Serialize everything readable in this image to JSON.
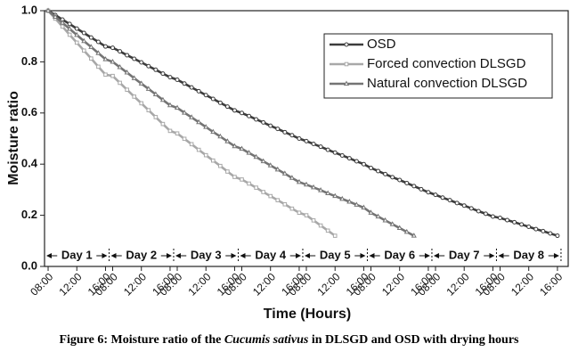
{
  "chart_data": {
    "type": "line",
    "xlabel": "Time (Hours)",
    "ylabel": "Moisture ratio",
    "caption": [
      "Figure 6: Moisture ratio of the ",
      "Cucumis sativus",
      " in DLSGD and OSD with drying hours"
    ],
    "day_labels": [
      "Day 1",
      "Day 2",
      "Day 3",
      "Day 4",
      "Day 5",
      "Day 6",
      "Day 7",
      "Day 8"
    ],
    "legend": "upper right",
    "x": [
      0,
      1,
      2,
      3,
      4,
      5,
      6,
      7,
      8,
      9,
      10,
      11,
      12,
      13,
      14,
      15,
      16,
      17,
      18,
      19,
      20,
      21,
      22,
      23,
      24,
      25,
      26,
      27,
      28,
      29,
      30,
      31,
      32,
      33,
      34,
      35,
      36,
      37,
      38,
      39,
      40,
      41,
      42,
      43,
      44,
      45,
      46,
      47,
      48,
      49,
      50,
      51,
      52,
      53,
      54,
      55,
      56,
      57,
      58,
      59,
      60,
      61,
      62,
      63,
      64,
      65,
      66,
      67,
      68,
      69,
      70,
      71
    ],
    "series": [
      {
        "name": "OSD",
        "color": "#3c3c3c",
        "marker": "circle",
        "values": [
          1.0,
          0.983,
          0.965,
          0.948,
          0.93,
          0.913,
          0.895,
          0.878,
          0.86,
          0.855,
          0.841,
          0.826,
          0.812,
          0.798,
          0.783,
          0.769,
          0.754,
          0.74,
          0.73,
          0.715,
          0.7,
          0.685,
          0.67,
          0.655,
          0.64,
          0.625,
          0.61,
          0.6,
          0.588,
          0.575,
          0.563,
          0.55,
          0.538,
          0.525,
          0.513,
          0.5,
          0.49,
          0.479,
          0.468,
          0.456,
          0.445,
          0.434,
          0.423,
          0.411,
          0.4,
          0.385,
          0.373,
          0.361,
          0.349,
          0.338,
          0.326,
          0.314,
          0.302,
          0.29,
          0.28,
          0.269,
          0.259,
          0.248,
          0.238,
          0.227,
          0.216,
          0.206,
          0.195,
          0.19,
          0.181,
          0.173,
          0.164,
          0.155,
          0.146,
          0.138,
          0.129,
          0.12
        ]
      },
      {
        "name": "Forced convection DLSGD",
        "color": "#a8a8a8",
        "marker": "square",
        "values": [
          1.0,
          0.969,
          0.938,
          0.906,
          0.875,
          0.844,
          0.813,
          0.781,
          0.75,
          0.745,
          0.718,
          0.691,
          0.664,
          0.638,
          0.611,
          0.584,
          0.557,
          0.53,
          0.52,
          0.499,
          0.478,
          0.456,
          0.435,
          0.414,
          0.393,
          0.371,
          0.35,
          0.34,
          0.324,
          0.308,
          0.291,
          0.275,
          0.259,
          0.243,
          0.226,
          0.21,
          0.2,
          0.18,
          0.16,
          0.14,
          0.12,
          null,
          null,
          null,
          null,
          null,
          null,
          null,
          null,
          null,
          null,
          null,
          null,
          null,
          null,
          null,
          null,
          null,
          null,
          null,
          null,
          null,
          null,
          null,
          null,
          null,
          null,
          null,
          null,
          null,
          null,
          null
        ]
      },
      {
        "name": "Natural convection DLSGD",
        "color": "#747474",
        "marker": "triangle",
        "values": [
          1.0,
          0.976,
          0.953,
          0.929,
          0.905,
          0.881,
          0.858,
          0.834,
          0.81,
          0.8,
          0.779,
          0.758,
          0.736,
          0.715,
          0.694,
          0.673,
          0.651,
          0.63,
          0.62,
          0.601,
          0.583,
          0.564,
          0.545,
          0.526,
          0.508,
          0.489,
          0.47,
          0.46,
          0.444,
          0.428,
          0.411,
          0.395,
          0.379,
          0.363,
          0.346,
          0.33,
          0.32,
          0.309,
          0.298,
          0.286,
          0.275,
          0.264,
          0.253,
          0.241,
          0.23,
          0.21,
          0.195,
          0.18,
          0.165,
          0.15,
          0.135,
          0.12,
          null,
          null,
          null,
          null,
          null,
          null,
          null,
          null,
          null,
          null,
          null,
          null,
          null,
          null,
          null,
          null,
          null,
          null,
          null,
          null
        ]
      }
    ],
    "xlim": [
      -0.5,
      72.5
    ],
    "xticks": [
      {
        "value": 0,
        "label": "08:00"
      },
      {
        "value": 4,
        "label": "12:00"
      },
      {
        "value": 8,
        "label": "16:00"
      },
      {
        "value": 9,
        "label": "08:00"
      },
      {
        "value": 13,
        "label": "12:00"
      },
      {
        "value": 17,
        "label": "16:00"
      },
      {
        "value": 18,
        "label": "08:00"
      },
      {
        "value": 22,
        "label": "12:00"
      },
      {
        "value": 26,
        "label": "16:00"
      },
      {
        "value": 27,
        "label": "08:00"
      },
      {
        "value": 31,
        "label": "12:00"
      },
      {
        "value": 35,
        "label": "16:00"
      },
      {
        "value": 36,
        "label": "08:00"
      },
      {
        "value": 40,
        "label": "12:00"
      },
      {
        "value": 44,
        "label": "16:00"
      },
      {
        "value": 45,
        "label": "08:00"
      },
      {
        "value": 49,
        "label": "12:00"
      },
      {
        "value": 53,
        "label": "16:00"
      },
      {
        "value": 54,
        "label": "08:00"
      },
      {
        "value": 58,
        "label": "12:00"
      },
      {
        "value": 62,
        "label": "16:00"
      },
      {
        "value": 63,
        "label": "08:00"
      },
      {
        "value": 67,
        "label": "12:00"
      },
      {
        "value": 71,
        "label": "16:00"
      }
    ],
    "ylim": [
      0,
      1.0
    ],
    "yticks": [
      {
        "value": 0,
        "label": "0.0"
      },
      0.2,
      0.4,
      0.6,
      0.8,
      {
        "value": 1.0,
        "label": "1.0"
      }
    ],
    "grid": false
  }
}
